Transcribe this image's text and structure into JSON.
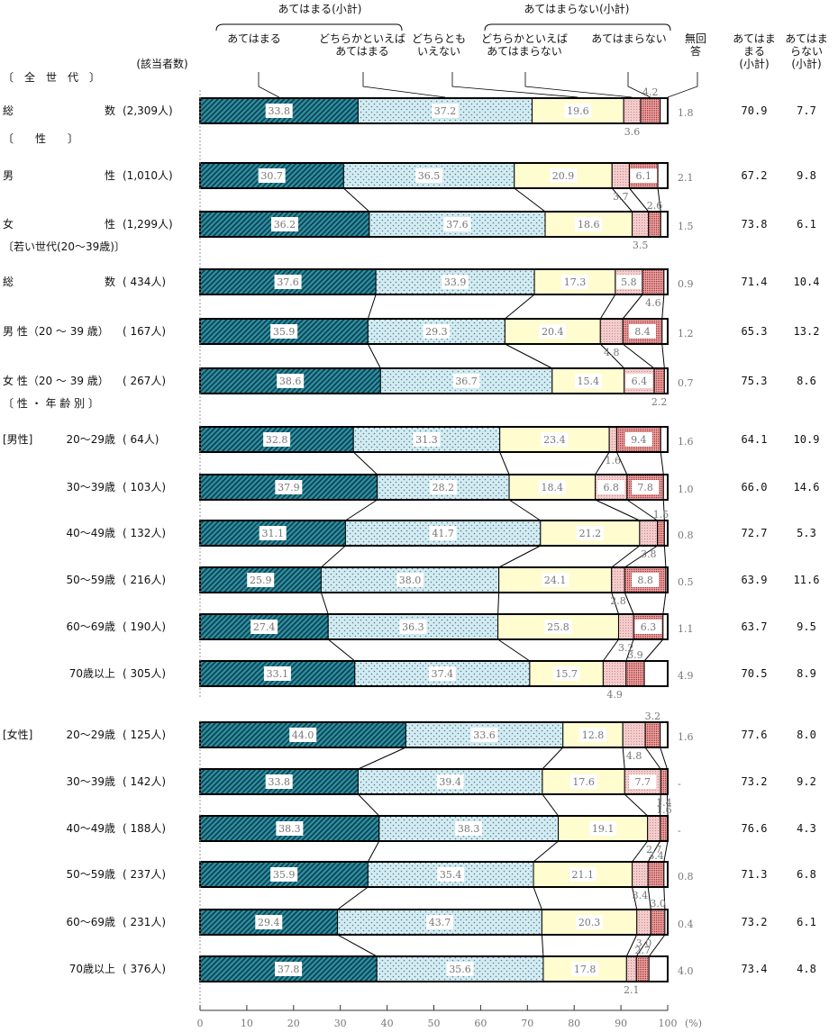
{
  "chart_data": {
    "type": "bar",
    "orientation": "horizontal",
    "stacked": true,
    "xlim": [
      0,
      100
    ],
    "xticks": [
      0,
      10,
      20,
      30,
      40,
      50,
      60,
      70,
      80,
      90,
      100
    ],
    "x_unit": "(%)",
    "legend_placement": "top",
    "header": {
      "agree_subtotal": "あてはまる(小計)",
      "disagree_subtotal": "あてはまらない(小計)",
      "n_header": "(該当者数)",
      "col_agree": [
        "あてはま",
        "まる",
        "(小計)"
      ],
      "col_disagree": [
        "あてはま",
        "らない",
        "(小計)"
      ],
      "no_answer": [
        "無回",
        "答"
      ]
    },
    "series": [
      {
        "name": [
          "あてはまる"
        ],
        "color": "#2b8fa3",
        "pattern": "diagonal-hatch"
      },
      {
        "name": [
          "どちらかといえば",
          "あてはまる"
        ],
        "color": "#d3ecf3",
        "pattern": "dots"
      },
      {
        "name": [
          "どちらとも",
          "いえない"
        ],
        "color": "#fffcd0",
        "pattern": "solid"
      },
      {
        "name": [
          "どちらかといえば",
          "あてはまらない"
        ],
        "color": "#f2c4c4",
        "pattern": "fine-dots"
      },
      {
        "name": [
          "あてはまらない"
        ],
        "color": "#d97070",
        "pattern": "dense-dots"
      },
      {
        "name": [
          "無回",
          "答"
        ],
        "color": "#ffffff",
        "pattern": "solid"
      }
    ],
    "sections": [
      {
        "title": "〔　全　世　代　〕",
        "rows": [
          {
            "label": "総数",
            "n": "(2,309人)",
            "values": [
              33.8,
              37.2,
              19.6,
              3.6,
              4.2
            ],
            "no_answer": "1.8",
            "agree": "70.9",
            "disagree": "7.7"
          }
        ]
      },
      {
        "title": "〔　　性　　〕",
        "rows": [
          {
            "label": "男性",
            "n": "(1,010人)",
            "values": [
              30.7,
              36.5,
              20.9,
              3.7,
              6.1
            ],
            "no_answer": "2.1",
            "agree": "67.2",
            "disagree": "9.8"
          },
          {
            "label": "女性",
            "n": "(1,299人)",
            "values": [
              36.2,
              37.6,
              18.6,
              3.5,
              2.6
            ],
            "no_answer": "1.5",
            "agree": "73.8",
            "disagree": "6.1"
          }
        ]
      },
      {
        "title": "〔若い世代(20～39歳)〕",
        "rows": [
          {
            "label": "総数",
            "n": "(  434人)",
            "values": [
              37.6,
              33.9,
              17.3,
              5.8,
              4.6
            ],
            "no_answer": "0.9",
            "agree": "71.4",
            "disagree": "10.4"
          },
          {
            "label": "男 性（20 ～ 39 歳）",
            "n": "(  167人)",
            "values": [
              35.9,
              29.3,
              20.4,
              4.8,
              8.4
            ],
            "no_answer": "1.2",
            "agree": "65.3",
            "disagree": "13.2"
          },
          {
            "label": "女 性（20 ～ 39 歳）",
            "n": "(  267人)",
            "values": [
              38.6,
              36.7,
              15.4,
              6.4,
              2.2
            ],
            "no_answer": "0.7",
            "agree": "75.3",
            "disagree": "8.6"
          }
        ]
      },
      {
        "title": "〔 性 ・ 年 齢 別 〕",
        "group": "[男性]",
        "rows": [
          {
            "label": "20～29歳",
            "n": "(  64人)",
            "values": [
              32.8,
              31.3,
              23.4,
              1.6,
              9.4
            ],
            "no_answer": "1.6",
            "agree": "64.1",
            "disagree": "10.9"
          },
          {
            "label": "30～39歳",
            "n": "( 103人)",
            "values": [
              37.9,
              28.2,
              18.4,
              6.8,
              7.8
            ],
            "no_answer": "1.0",
            "agree": "66.0",
            "disagree": "14.6"
          },
          {
            "label": "40～49歳",
            "n": "( 132人)",
            "values": [
              31.1,
              41.7,
              21.2,
              3.8,
              1.5
            ],
            "no_answer": "0.8",
            "agree": "72.7",
            "disagree": "5.3"
          },
          {
            "label": "50～59歳",
            "n": "( 216人)",
            "values": [
              25.9,
              38.0,
              24.1,
              2.8,
              8.8
            ],
            "no_answer": "0.5",
            "agree": "63.9",
            "disagree": "11.6"
          },
          {
            "label": "60～69歳",
            "n": "( 190人)",
            "values": [
              27.4,
              36.3,
              25.8,
              3.2,
              6.3
            ],
            "no_answer": "1.1",
            "agree": "63.7",
            "disagree": "9.5"
          },
          {
            "label": "70歳以上",
            "n": "( 305人)",
            "values": [
              33.1,
              37.4,
              15.7,
              4.9,
              3.9
            ],
            "no_answer": "4.9",
            "agree": "70.5",
            "disagree": "8.9"
          }
        ]
      },
      {
        "title": "",
        "group": "[女性]",
        "rows": [
          {
            "label": "20～29歳",
            "n": "( 125人)",
            "values": [
              44.0,
              33.6,
              12.8,
              4.8,
              3.2
            ],
            "no_answer": "1.6",
            "agree": "77.6",
            "disagree": "8.0"
          },
          {
            "label": "30～39歳",
            "n": "( 142人)",
            "values": [
              33.8,
              39.4,
              17.6,
              7.7,
              1.4
            ],
            "no_answer": "-",
            "agree": "73.2",
            "disagree": "9.2"
          },
          {
            "label": "40～49歳",
            "n": "( 188人)",
            "values": [
              38.3,
              38.3,
              19.1,
              2.7,
              1.6
            ],
            "no_answer": "-",
            "agree": "76.6",
            "disagree": "4.3"
          },
          {
            "label": "50～59歳",
            "n": "( 237人)",
            "values": [
              35.9,
              35.4,
              21.1,
              3.4,
              3.4
            ],
            "no_answer": "0.8",
            "agree": "71.3",
            "disagree": "6.8"
          },
          {
            "label": "60～69歳",
            "n": "( 231人)",
            "values": [
              29.4,
              43.7,
              20.3,
              3.0,
              3.0
            ],
            "no_answer": "0.4",
            "agree": "73.2",
            "disagree": "6.1"
          },
          {
            "label": "70歳以上",
            "n": "( 376人)",
            "values": [
              37.8,
              35.6,
              17.8,
              2.1,
              2.7
            ],
            "no_answer": "4.0",
            "agree": "73.4",
            "disagree": "4.8"
          }
        ]
      }
    ]
  }
}
